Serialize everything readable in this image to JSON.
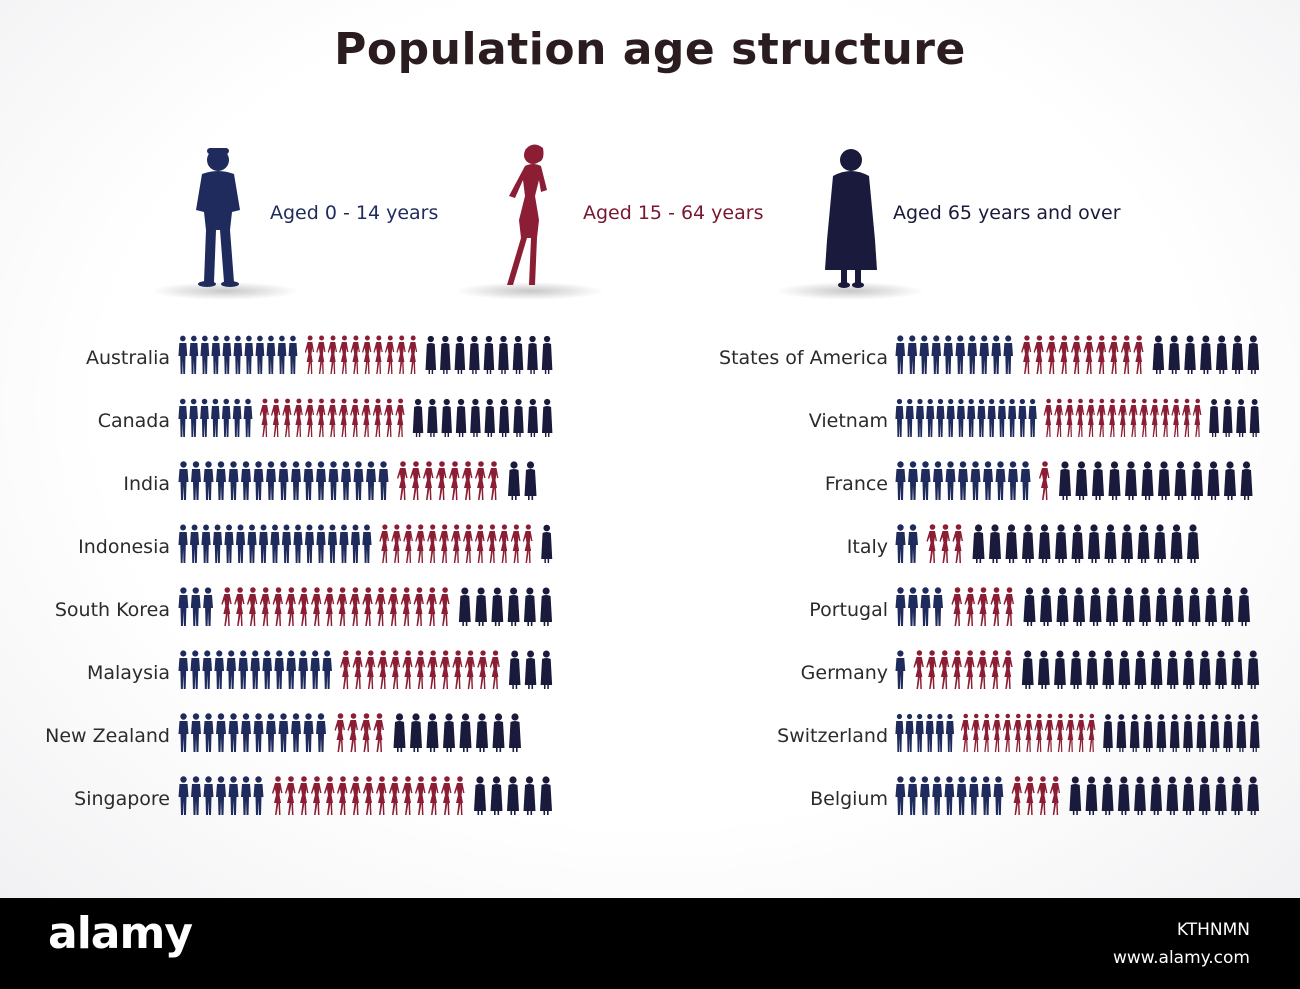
{
  "title": "Population age structure",
  "colors": {
    "children": "#1f2b5c",
    "working": "#8b1e34",
    "elderly": "#1a1a3c",
    "text_dark": "#2b2b2b",
    "footer_bg": "#000000"
  },
  "legend": [
    {
      "label": "Aged 0 - 14 years",
      "icon": "child-silhouette-icon",
      "color": "#1f2b5c"
    },
    {
      "label": "Aged 15 - 64  years",
      "icon": "woman-silhouette-icon",
      "color": "#7a1730"
    },
    {
      "label": "Aged  65 years and over",
      "icon": "elderly-silhouette-icon",
      "color": "#1a1a3c"
    }
  ],
  "chart_data": {
    "type": "pictogram",
    "series": [
      {
        "name": "Aged 0 - 14 years",
        "key": "children"
      },
      {
        "name": "Aged 15 - 64  years",
        "key": "working"
      },
      {
        "name": "Aged  65 years and over",
        "key": "elderly"
      }
    ],
    "groups": [
      {
        "column": "left",
        "countries": [
          {
            "name": "Australia",
            "children": 11,
            "working": 10,
            "elderly": 9
          },
          {
            "name": "Canada",
            "children": 7,
            "working": 13,
            "elderly": 10
          },
          {
            "name": "India",
            "children": 17,
            "working": 8,
            "elderly": 2
          },
          {
            "name": "Indonesia",
            "children": 17,
            "working": 13,
            "elderly": 1
          },
          {
            "name": "South Korea",
            "children": 3,
            "working": 18,
            "elderly": 6
          },
          {
            "name": "Malaysia",
            "children": 13,
            "working": 13,
            "elderly": 3
          },
          {
            "name": "New Zealand",
            "children": 12,
            "working": 4,
            "elderly": 8
          },
          {
            "name": "Singapore",
            "children": 7,
            "working": 15,
            "elderly": 5
          }
        ]
      },
      {
        "column": "right",
        "countries": [
          {
            "name": "States of America",
            "children": 10,
            "working": 10,
            "elderly": 7
          },
          {
            "name": "Vietnam",
            "children": 14,
            "working": 15,
            "elderly": 4
          },
          {
            "name": "France",
            "children": 11,
            "working": 1,
            "elderly": 12
          },
          {
            "name": "Italy",
            "children": 2,
            "working": 3,
            "elderly": 14
          },
          {
            "name": "Portugal",
            "children": 4,
            "working": 5,
            "elderly": 14
          },
          {
            "name": "Germany",
            "children": 1,
            "working": 8,
            "elderly": 15
          },
          {
            "name": "Switzerland",
            "children": 6,
            "working": 13,
            "elderly": 12
          },
          {
            "name": "Belgium",
            "children": 9,
            "working": 4,
            "elderly": 12
          }
        ]
      }
    ]
  },
  "footer": {
    "brand": "alamy",
    "code": "KTHNMN",
    "url": "www.alamy.com"
  }
}
